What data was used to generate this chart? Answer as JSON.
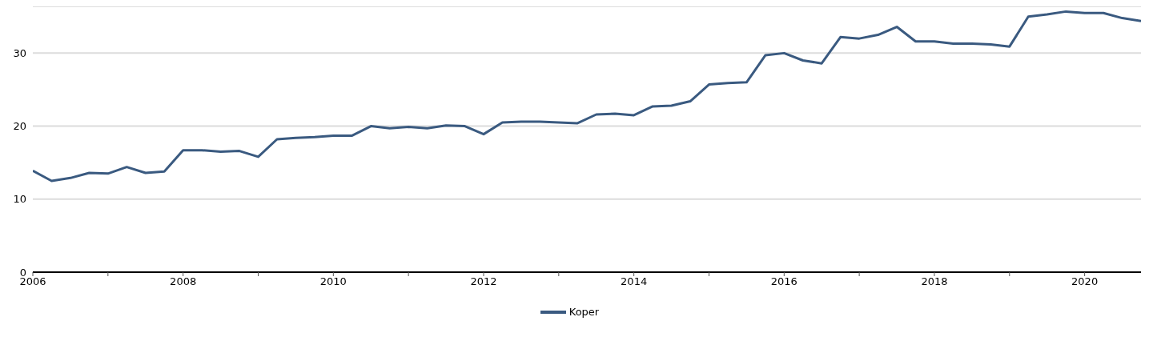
{
  "chart_data": {
    "type": "line",
    "x": [
      2006,
      2006.25,
      2006.5,
      2006.75,
      2007,
      2007.25,
      2007.5,
      2007.75,
      2008,
      2008.25,
      2008.5,
      2008.75,
      2009,
      2009.25,
      2009.5,
      2009.75,
      2010,
      2010.25,
      2010.5,
      2010.75,
      2011,
      2011.25,
      2011.5,
      2011.75,
      2012,
      2012.25,
      2012.5,
      2012.75,
      2013,
      2013.25,
      2013.5,
      2013.75,
      2014,
      2014.25,
      2014.5,
      2014.75,
      2015,
      2015.25,
      2015.5,
      2015.75,
      2016,
      2016.25,
      2016.5,
      2016.75,
      2017,
      2017.25,
      2017.5,
      2017.75,
      2018,
      2018.25,
      2018.5,
      2018.75,
      2019,
      2019.25,
      2019.5,
      2019.75,
      2020,
      2020.25,
      2020.5,
      2020.75
    ],
    "series": [
      {
        "name": "Koper",
        "color": "#3a5a80",
        "values": [
          13.9,
          12.5,
          12.9,
          13.6,
          13.5,
          14.4,
          13.6,
          13.8,
          16.7,
          16.7,
          16.5,
          16.6,
          15.8,
          18.2,
          18.4,
          18.5,
          18.7,
          18.7,
          20.0,
          19.7,
          19.9,
          19.7,
          20.1,
          20.0,
          18.9,
          20.5,
          20.6,
          20.6,
          20.5,
          20.4,
          21.6,
          21.7,
          21.5,
          22.7,
          22.8,
          23.4,
          25.7,
          25.9,
          26.0,
          29.7,
          30.0,
          29.0,
          28.6,
          32.2,
          32.0,
          32.5,
          33.6,
          31.6,
          31.6,
          31.3,
          31.3,
          31.2,
          30.9,
          35.0,
          35.3,
          35.7,
          35.5,
          35.5,
          34.8,
          34.4
        ]
      }
    ],
    "xlim": [
      2006,
      2020.75
    ],
    "xticks": [
      2006,
      {
        "value": 2007,
        "label": null
      },
      2008,
      {
        "value": 2009,
        "label": null
      },
      2010,
      {
        "value": 2011,
        "label": null
      },
      2012,
      {
        "value": 2013,
        "label": null
      },
      2014,
      {
        "value": 2015,
        "label": null
      },
      2016,
      {
        "value": 2017,
        "label": null
      },
      2018,
      {
        "value": 2019,
        "label": null
      },
      2020
    ],
    "ylim": [
      0,
      36.4
    ],
    "yticks": [
      0,
      10,
      20,
      30
    ],
    "grid": "y",
    "legend": "bottom",
    "marker": "none",
    "line_style": "solid"
  }
}
